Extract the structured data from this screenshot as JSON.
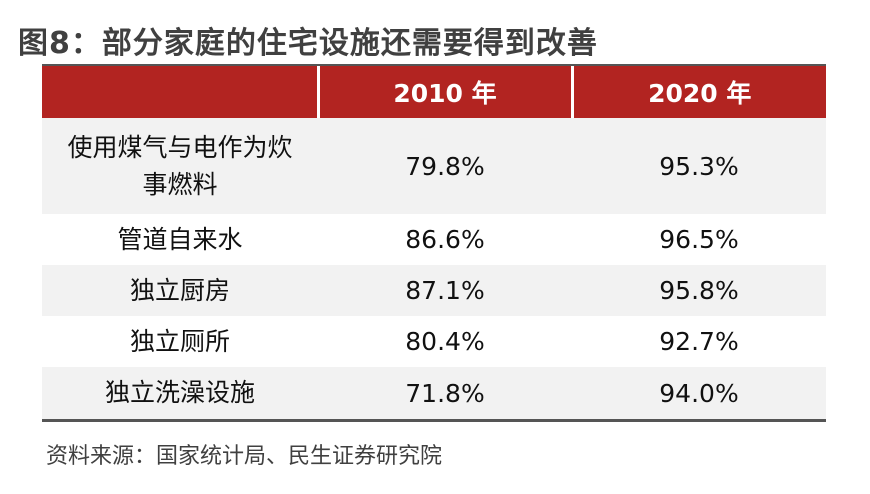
{
  "title": "图8：部分家庭的住宅设施还需要得到改善",
  "table": {
    "headers": [
      "",
      "2010 年",
      "2020 年"
    ],
    "rows": [
      {
        "label": "使用煤气与电作为炊事燃料",
        "y2010": "79.8%",
        "y2020": "95.3%"
      },
      {
        "label": "管道自来水",
        "y2010": "86.6%",
        "y2020": "96.5%"
      },
      {
        "label": "独立厨房",
        "y2010": "87.1%",
        "y2020": "95.8%"
      },
      {
        "label": "独立厕所",
        "y2010": "80.4%",
        "y2020": "92.7%"
      },
      {
        "label": "独立洗澡设施",
        "y2010": "71.8%",
        "y2020": "94.0%"
      }
    ]
  },
  "source": "资料来源：国家统计局、民生证券研究院",
  "colors": {
    "header_bg": "#b22421",
    "header_text": "#ffffff",
    "title_text": "#404040",
    "stripe_bg": "#f2f2f2"
  }
}
